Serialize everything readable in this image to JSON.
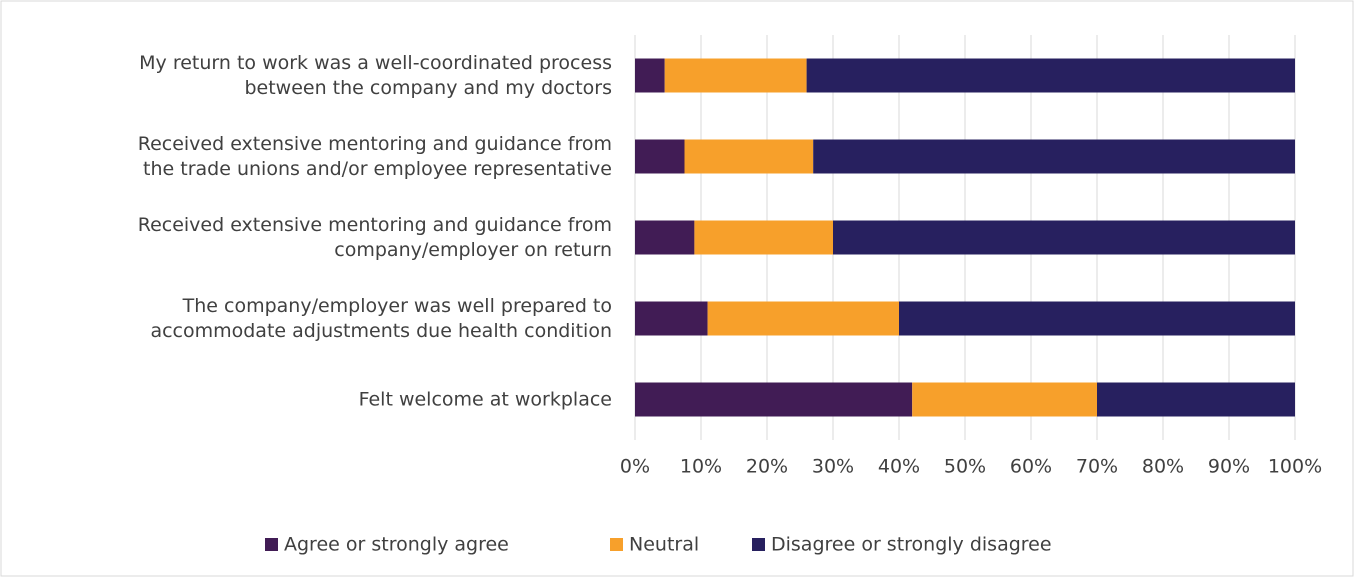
{
  "chart_data": {
    "type": "stacked_bar_horizontal",
    "categories": [
      "My return to work was a well-coordinated process\nbetween the company and my doctors",
      "Received extensive mentoring and guidance from\nthe trade unions and/or employee representative",
      "Received extensive mentoring and guidance from\ncompany/employer on return",
      "The company/employer was well prepared to\naccommodate adjustments due health condition",
      "Felt welcome at workplace"
    ],
    "series": [
      {
        "name": "Agree or strongly agree",
        "color": "#411c55",
        "values": [
          4.5,
          7.5,
          9,
          11,
          42
        ]
      },
      {
        "name": "Neutral",
        "color": "#f7a02b",
        "values": [
          21.5,
          19.5,
          21,
          29,
          28
        ]
      },
      {
        "name": "Disagree or strongly disagree",
        "color": "#27205f",
        "values": [
          74,
          73,
          70,
          60,
          30
        ]
      }
    ],
    "xlim": [
      0,
      100
    ],
    "xticks": [
      {
        "value": 0,
        "label": "0%"
      },
      {
        "value": 10,
        "label": "10%"
      },
      {
        "value": 20,
        "label": "20%"
      },
      {
        "value": 30,
        "label": "30%"
      },
      {
        "value": 40,
        "label": "40%"
      },
      {
        "value": 50,
        "label": "50%"
      },
      {
        "value": 60,
        "label": "60%"
      },
      {
        "value": 70,
        "label": "70%"
      },
      {
        "value": 80,
        "label": "80%"
      },
      {
        "value": 90,
        "label": "90%"
      },
      {
        "value": 100,
        "label": "100%"
      }
    ],
    "grid": true,
    "legend": "bottom"
  }
}
